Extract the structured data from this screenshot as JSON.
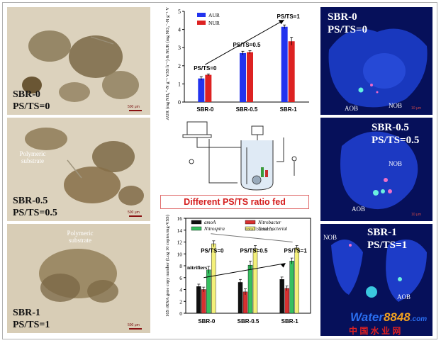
{
  "left_panels": [
    {
      "label1": "SBR-0",
      "label2": "PS/TS=0",
      "scale": "500 μm",
      "annotation": ""
    },
    {
      "label1": "SBR-0.5",
      "label2": "PS/TS=0.5",
      "scale": "500 μm",
      "annotation": "Polymeric substrate"
    },
    {
      "label1": "SBR-1",
      "label2": "PS/TS=1",
      "scale": "500 μm",
      "annotation": "Polymeric substrate"
    }
  ],
  "right_panels": [
    {
      "label1": "SBR-0",
      "label2": "PS/TS=0",
      "annot_a": "AOB",
      "annot_b": "NOB",
      "scale": "10 μm"
    },
    {
      "label1": "SBR-0.5",
      "label2": "PS/TS=0.5",
      "annot_a": "NOB",
      "annot_b": "AOB",
      "scale": "10 μm"
    },
    {
      "label1": "SBR-1",
      "label2": "PS/TS=1",
      "annot_a": "NOB",
      "annot_b": "AOB",
      "scale": ""
    }
  ],
  "banner": "Different PS/TS ratio fed",
  "watermark": {
    "brand_left": "Water",
    "brand_num": "8848",
    "brand_tld": ".com",
    "cn": "中 国 水 业 网"
  },
  "colors": {
    "aur": "#2233ee",
    "nur": "#dd2222",
    "amoA": "#111111",
    "nitrobacter": "#d83030",
    "nitrospira": "#36c060",
    "total": "#f4f07a"
  },
  "chart_data": [
    {
      "type": "bar",
      "categories": [
        "SBR-0",
        "SBR-0.5",
        "SBR-1"
      ],
      "series": [
        {
          "name": "AUR",
          "values": [
            1.3,
            2.7,
            4.15
          ]
        },
        {
          "name": "NUR",
          "values": [
            1.5,
            2.75,
            3.35
          ]
        }
      ],
      "errors": [
        [
          0.1,
          0.1,
          0.1
        ],
        [
          0.05,
          0.08,
          0.22
        ]
      ],
      "ylabel": "AUR (mg NH₄⁺-N g⁻¹ VSS h⁻¹) & NUR (mg NO₂⁻-N g⁻¹ VSS h⁻¹)",
      "ylim": [
        0,
        5
      ],
      "yticks": [
        "0",
        "1",
        "2",
        "3",
        "4",
        "5"
      ],
      "legend": "top-left",
      "annotations": [
        "PS/TS=0",
        "PS/TS=0.5",
        "PS/TS=1"
      ]
    },
    {
      "type": "bar",
      "categories": [
        "SBR-0",
        "SBR-0.5",
        "SBR-1"
      ],
      "series": [
        {
          "name": "amoA",
          "values": [
            4.5,
            5.2,
            5.7
          ]
        },
        {
          "name": "Nitrobacter",
          "values": [
            4.0,
            3.6,
            4.2
          ]
        },
        {
          "name": "Nitrospira",
          "values": [
            7.3,
            8.1,
            8.8
          ]
        },
        {
          "name": "Total bacterial",
          "values": [
            11.7,
            10.9,
            11.0
          ]
        }
      ],
      "errors": [
        [
          0.4,
          0.5,
          0.4
        ],
        [
          0.4,
          0.5,
          0.4
        ],
        [
          0.6,
          0.7,
          0.5
        ],
        [
          0.5,
          0.5,
          0.4
        ]
      ],
      "ylabel": "16S rRNA gene copy number (Log 10 copies/mg-VSS)",
      "ylim": [
        0,
        16
      ],
      "yticks": [
        "0",
        "2",
        "4",
        "6",
        "8",
        "10",
        "12",
        "14",
        "16"
      ],
      "legend": "top",
      "annotations": [
        "PS/TS=0",
        "PS/TS=0.5",
        "PS/TS=1",
        "total bacteria",
        "nitrifiers"
      ]
    }
  ]
}
